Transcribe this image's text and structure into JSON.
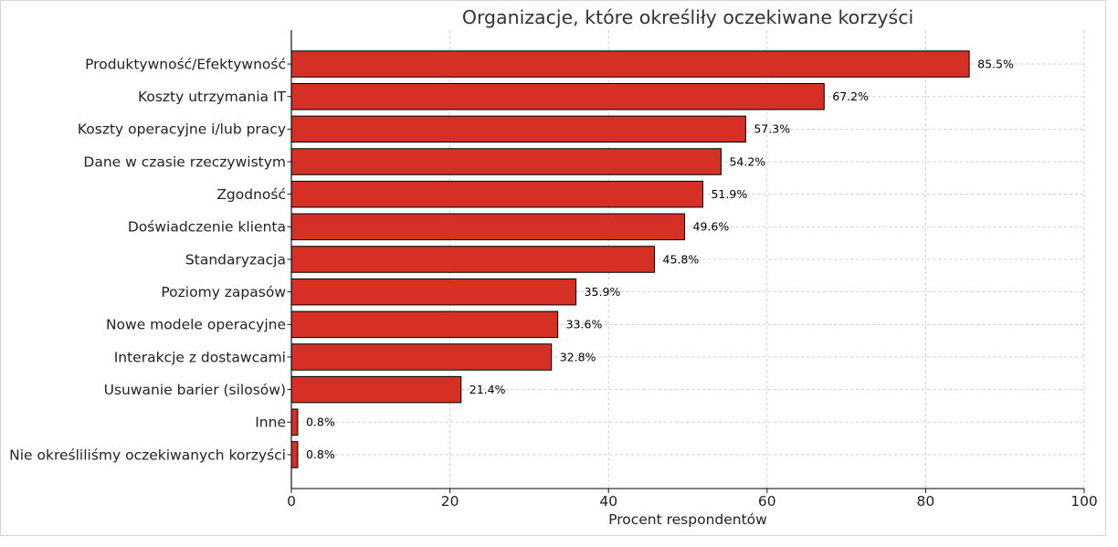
{
  "chart_data": {
    "type": "bar",
    "orientation": "horizontal",
    "title": "Organizacje, które określiły oczekiwane korzyści",
    "xlabel": "Procent respondentów",
    "categories": [
      "Produktywność/Efektywność",
      "Koszty utrzymania IT",
      "Koszty operacyjne i/lub pracy",
      "Dane w czasie rzeczywistym",
      "Zgodność",
      "Doświadczenie klienta",
      "Standaryzacja",
      "Poziomy zapasów",
      "Nowe modele operacyjne",
      "Interakcje z dostawcami",
      "Usuwanie barier (silosów)",
      "Inne",
      "Nie określiliśmy oczekiwanych korzyści"
    ],
    "values": [
      85.5,
      67.2,
      57.3,
      54.2,
      51.9,
      49.6,
      45.8,
      35.9,
      33.6,
      32.8,
      21.4,
      0.8,
      0.8
    ],
    "data_labels": [
      "85.5%",
      "67.2%",
      "57.3%",
      "54.2%",
      "51.9%",
      "49.6%",
      "45.8%",
      "35.9%",
      "33.6%",
      "32.8%",
      "21.4%",
      "0.8%",
      "0.8%"
    ],
    "xlim": [
      0,
      100
    ],
    "xticks": [
      0,
      20,
      40,
      60,
      80,
      100
    ],
    "grid": true,
    "grid_style": "dashed",
    "bar_color": "#d62f26",
    "edge_color": "#000000",
    "grid_color": "#c8c8c8"
  }
}
